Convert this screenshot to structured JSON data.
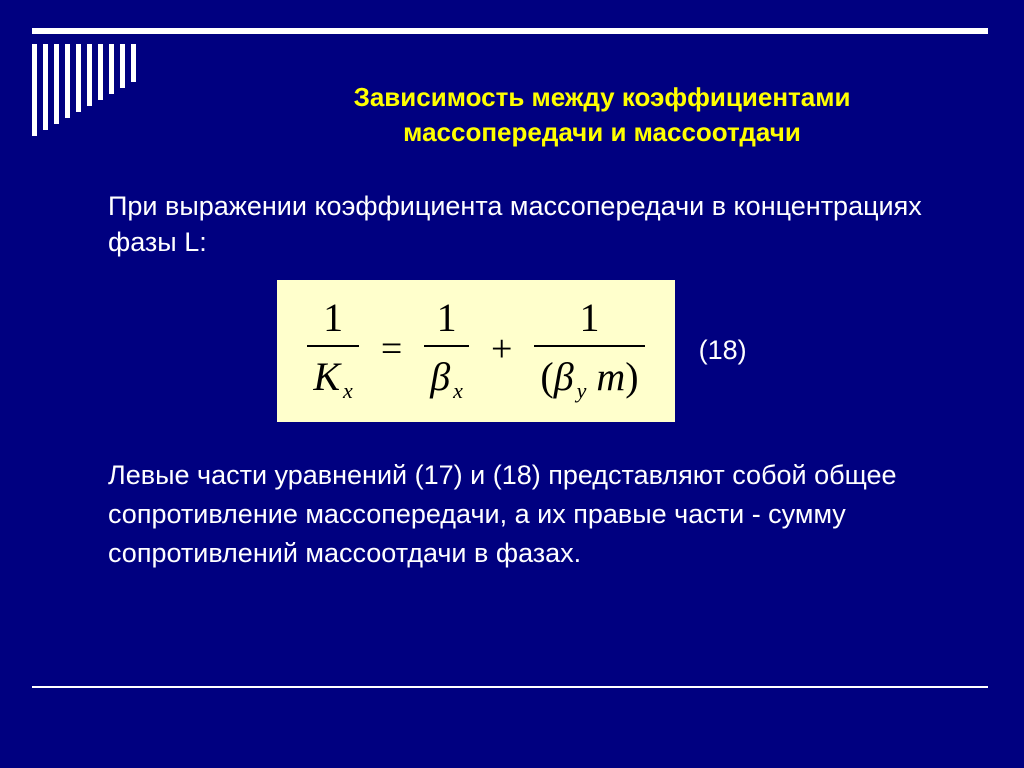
{
  "colors": {
    "background": "#000080",
    "rule": "#ffffff",
    "title": "#ffff00",
    "body_text": "#ffffff",
    "formula_bg": "#ffffcc",
    "formula_text": "#000000"
  },
  "typography": {
    "title_fontsize": 26,
    "title_weight": "bold",
    "body_fontsize": 27,
    "formula_font": "Times New Roman",
    "formula_fontsize": 40
  },
  "decor": {
    "stripe_count": 10,
    "stripe_width": 5,
    "stripe_gap": 6,
    "stripe_heights": [
      92,
      86,
      80,
      74,
      68,
      62,
      56,
      50,
      44,
      38
    ],
    "top_rule_thickness": 6,
    "bottom_rule_thickness": 2
  },
  "title": {
    "line1": "Зависимость между коэффициентами",
    "line2": "массопередачи и массоотдачи"
  },
  "para1": "При выражении коэффициента массопередачи в концентрациях фазы L:",
  "formula": {
    "lhs": {
      "num": "1",
      "den_sym": "K",
      "den_sub": "x"
    },
    "rhs1": {
      "num": "1",
      "den_sym": "β",
      "den_sub": "x"
    },
    "rhs2": {
      "num": "1",
      "den_open": "(",
      "den_sym1": "β",
      "den_sub1": "y",
      "den_sym2": "m",
      "den_close": ")"
    },
    "eq_number": "(18)"
  },
  "para2": "Левые части уравнений (17)  и (18) представляют собой общее сопротивление массопередачи, а их правые части - сумму сопротивлений массоотдачи в фазах."
}
